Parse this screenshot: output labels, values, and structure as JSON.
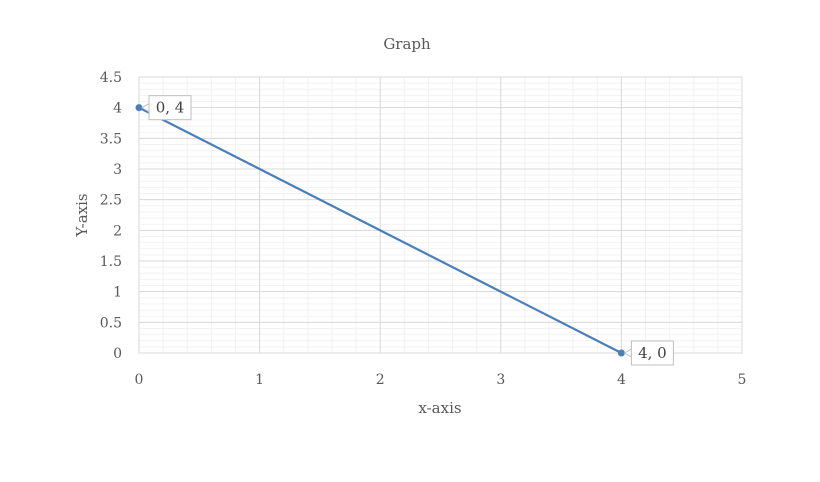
{
  "chart_data": {
    "type": "scatter",
    "title": "Graph",
    "xlabel": "x-axis",
    "ylabel": "Y-axis",
    "xlim": [
      0,
      5
    ],
    "ylim": [
      0,
      4.5
    ],
    "x_ticks": [
      "0",
      "1",
      "2",
      "3",
      "4",
      "5"
    ],
    "y_ticks": [
      "0",
      "0.5",
      "1",
      "1.5",
      "2",
      "2.5",
      "3",
      "3.5",
      "4",
      "4.5"
    ],
    "grid": true,
    "minor_grid": true,
    "series": [
      {
        "color": "#4a7ebb",
        "points": [
          {
            "x": 0,
            "y": 4,
            "label": "0, 4"
          },
          {
            "x": 4,
            "y": 0,
            "label": "4, 0"
          }
        ]
      }
    ]
  }
}
